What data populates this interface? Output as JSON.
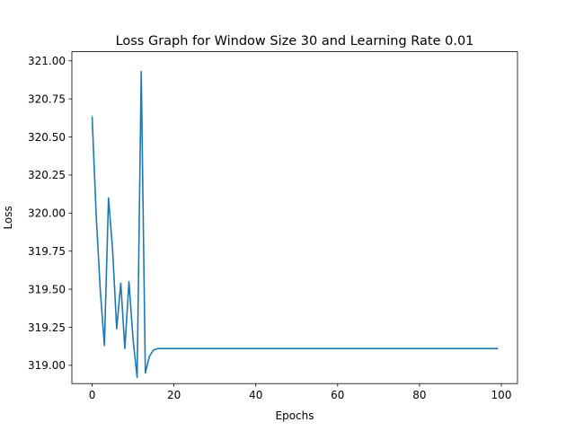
{
  "chart_data": {
    "type": "line",
    "title": "Loss Graph for Window Size 30 and Learning Rate 0.01",
    "xlabel": "Epochs",
    "ylabel": "Loss",
    "xlim": [
      -4.95,
      103.95
    ],
    "ylim": [
      318.88,
      321.06
    ],
    "xticks": [
      0,
      20,
      40,
      60,
      80,
      100
    ],
    "xtick_labels": [
      "0",
      "20",
      "40",
      "60",
      "80",
      "100"
    ],
    "yticks": [
      319.0,
      319.25,
      319.5,
      319.75,
      320.0,
      320.25,
      320.5,
      320.75,
      321.0
    ],
    "ytick_labels": [
      "319.00",
      "319.25",
      "319.50",
      "319.75",
      "320.00",
      "320.25",
      "320.50",
      "320.75",
      "321.00"
    ],
    "grid": false,
    "series": [
      {
        "color": "#1f77b4",
        "x": [
          0,
          1,
          2,
          3,
          4,
          5,
          6,
          7,
          8,
          9,
          10,
          11,
          12,
          13,
          14,
          15,
          16,
          17,
          18,
          19,
          20,
          21,
          22,
          23,
          24,
          25,
          26,
          27,
          28,
          29,
          30,
          31,
          32,
          33,
          34,
          35,
          36,
          37,
          38,
          39,
          40,
          41,
          42,
          43,
          44,
          45,
          46,
          47,
          48,
          49,
          50,
          51,
          52,
          53,
          54,
          55,
          56,
          57,
          58,
          59,
          60,
          61,
          62,
          63,
          64,
          65,
          66,
          67,
          68,
          69,
          70,
          71,
          72,
          73,
          74,
          75,
          76,
          77,
          78,
          79,
          80,
          81,
          82,
          83,
          84,
          85,
          86,
          87,
          88,
          89,
          90,
          91,
          92,
          93,
          94,
          95,
          96,
          97,
          98,
          99
        ],
        "y": [
          320.63,
          319.98,
          319.49,
          319.13,
          320.1,
          319.76,
          319.24,
          319.54,
          319.11,
          319.55,
          319.17,
          318.92,
          320.93,
          318.95,
          319.06,
          319.1,
          319.11,
          319.11,
          319.11,
          319.11,
          319.11,
          319.11,
          319.11,
          319.11,
          319.11,
          319.11,
          319.11,
          319.11,
          319.11,
          319.11,
          319.11,
          319.11,
          319.11,
          319.11,
          319.11,
          319.11,
          319.11,
          319.11,
          319.11,
          319.11,
          319.11,
          319.11,
          319.11,
          319.11,
          319.11,
          319.11,
          319.11,
          319.11,
          319.11,
          319.11,
          319.11,
          319.11,
          319.11,
          319.11,
          319.11,
          319.11,
          319.11,
          319.11,
          319.11,
          319.11,
          319.11,
          319.11,
          319.11,
          319.11,
          319.11,
          319.11,
          319.11,
          319.11,
          319.11,
          319.11,
          319.11,
          319.11,
          319.11,
          319.11,
          319.11,
          319.11,
          319.11,
          319.11,
          319.11,
          319.11,
          319.11,
          319.11,
          319.11,
          319.11,
          319.11,
          319.11,
          319.11,
          319.11,
          319.11,
          319.11,
          319.11,
          319.11,
          319.11,
          319.11,
          319.11,
          319.11,
          319.11,
          319.11,
          319.11,
          319.11
        ]
      }
    ]
  }
}
